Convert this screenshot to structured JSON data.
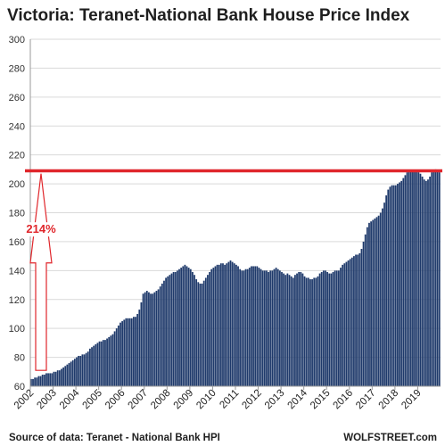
{
  "chart_data": {
    "type": "bar",
    "title": "Victoria: Teranet-National  Bank House Price Index",
    "xlabel": "",
    "ylabel": "",
    "ylim": [
      60,
      300
    ],
    "yticks": [
      60,
      80,
      100,
      120,
      140,
      160,
      180,
      200,
      220,
      240,
      260,
      280,
      300
    ],
    "x_tick_labels": [
      "2002",
      "2003",
      "2004",
      "2005",
      "2006",
      "2007",
      "2008",
      "2009",
      "2010",
      "2011",
      "2012",
      "2013",
      "2014",
      "2015",
      "2016",
      "2017",
      "2018",
      "2019"
    ],
    "x_start_year": 2002,
    "points_per_year": 12,
    "bar_color": "#1f3a6b",
    "series": [
      {
        "values": [
          65,
          65,
          66,
          66,
          67,
          67,
          68,
          68,
          69,
          69,
          69,
          69,
          70,
          70,
          71,
          71,
          72,
          73,
          74,
          75,
          76,
          77,
          78,
          79,
          80,
          81,
          81,
          82,
          82,
          83,
          84,
          86,
          87,
          88,
          89,
          90,
          91,
          91,
          92,
          92,
          93,
          94,
          95,
          96,
          98,
          100,
          102,
          104,
          105,
          106,
          107,
          107,
          107,
          107,
          108,
          108,
          110,
          113,
          118,
          124,
          125,
          126,
          125,
          124,
          124,
          125,
          126,
          127,
          129,
          131,
          133,
          135,
          136,
          137,
          138,
          139,
          139,
          140,
          141,
          142,
          143,
          144,
          143,
          142,
          141,
          139,
          137,
          134,
          132,
          131,
          131,
          133,
          135,
          137,
          139,
          141,
          142,
          143,
          144,
          144,
          145,
          145,
          144,
          145,
          146,
          147,
          146,
          145,
          144,
          143,
          141,
          140,
          140,
          141,
          141,
          142,
          143,
          143,
          143,
          143,
          142,
          141,
          140,
          140,
          140,
          139,
          140,
          140,
          141,
          142,
          141,
          140,
          139,
          138,
          137,
          138,
          137,
          136,
          135,
          137,
          138,
          139,
          139,
          138,
          136,
          135,
          135,
          134,
          134,
          135,
          135,
          136,
          138,
          139,
          140,
          140,
          139,
          138,
          138,
          139,
          140,
          140,
          140,
          142,
          144,
          145,
          146,
          147,
          148,
          149,
          150,
          151,
          151,
          152,
          155,
          160,
          165,
          170,
          173,
          174,
          175,
          176,
          177,
          178,
          180,
          183,
          187,
          192,
          196,
          198,
          199,
          199,
          199,
          200,
          201,
          202,
          204,
          206,
          208,
          209,
          209,
          209,
          209,
          209,
          208,
          207,
          205,
          203,
          202,
          203,
          205,
          208,
          209,
          210,
          209,
          208
        ]
      }
    ],
    "reference_line": {
      "value": 209,
      "color": "#e0262b"
    },
    "arrow": {
      "from": 71,
      "to": 207,
      "color": "#e0262b"
    },
    "annotation": "214%",
    "source": "Source of data: Teranet - National Bank HPI",
    "brand": "WOLFSTREET.com"
  }
}
